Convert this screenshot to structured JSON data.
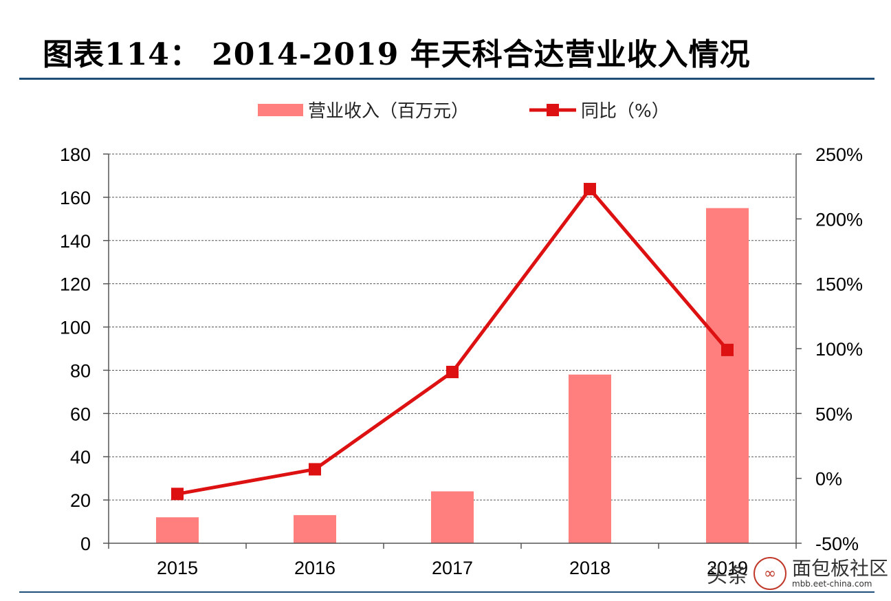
{
  "title": "图表114：  2014-2019 年天科合达营业收入情况",
  "watermark": {
    "brand": "头条",
    "logo_icon": "link-circle-icon",
    "site_name": "面包板社区",
    "site_url": "mbb.eet-china.com"
  },
  "colors": {
    "bar": "#ff7f7f",
    "line": "#dd1111",
    "rule": "#1f4e79"
  },
  "chart_data": {
    "type": "bar",
    "categories": [
      "2015",
      "2016",
      "2017",
      "2018",
      "2019"
    ],
    "series": [
      {
        "name": "营业收入（百万元）",
        "type": "bar",
        "axis": "left",
        "values": [
          12,
          13,
          24,
          78,
          155
        ]
      },
      {
        "name": "同比（%）",
        "type": "line",
        "axis": "right",
        "values": [
          -0.12,
          0.07,
          0.82,
          2.23,
          0.99
        ]
      }
    ],
    "ylim": [
      0,
      180
    ],
    "y_ticks": [
      "0",
      "20",
      "40",
      "60",
      "80",
      "100",
      "120",
      "140",
      "160",
      "180"
    ],
    "y2lim": [
      -0.5,
      2.5
    ],
    "y2_ticks": [
      "-50%",
      "0%",
      "50%",
      "100%",
      "150%",
      "200%",
      "250%"
    ],
    "grid": true,
    "legend_position": "top-center"
  }
}
